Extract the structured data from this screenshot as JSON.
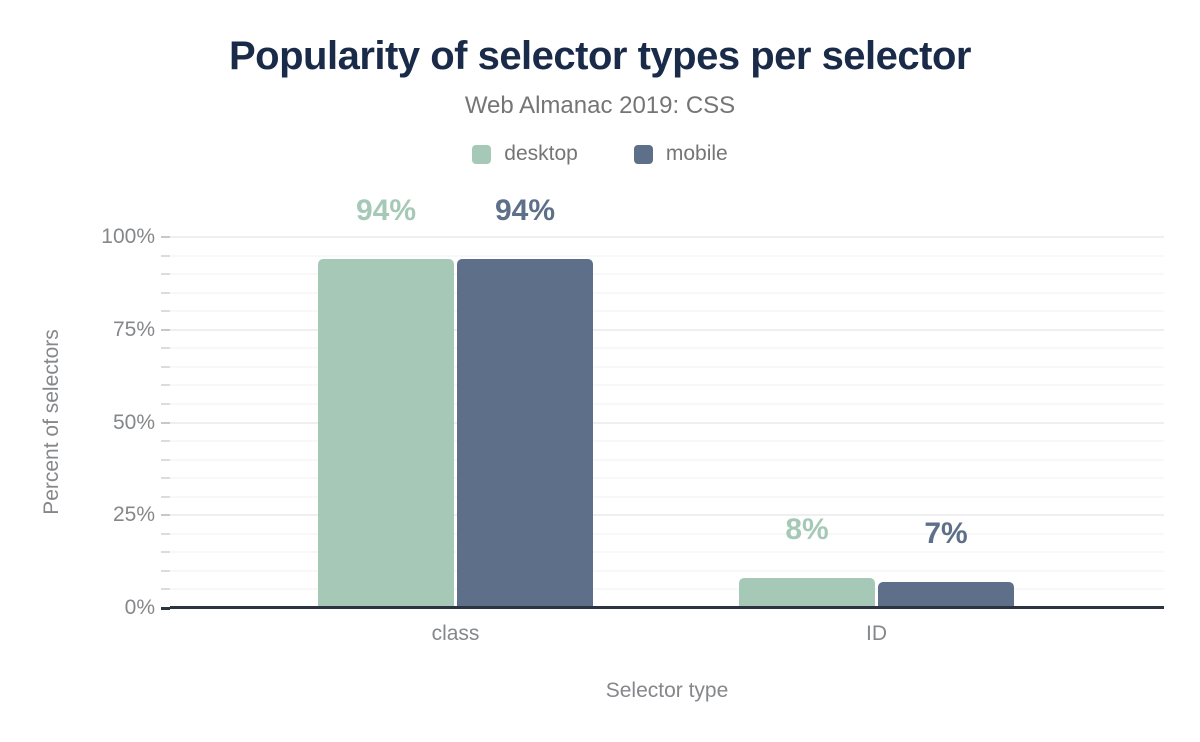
{
  "title": "Popularity of selector types per selector",
  "subtitle": "Web Almanac 2019: CSS",
  "chart_data": {
    "type": "bar",
    "categories": [
      "class",
      "ID"
    ],
    "series": [
      {
        "name": "desktop",
        "color": "#a6c9b7",
        "values": [
          94,
          8
        ],
        "labels": [
          "94%",
          "8%"
        ]
      },
      {
        "name": "mobile",
        "color": "#5e7089",
        "values": [
          94,
          7
        ],
        "labels": [
          "94%",
          "7%"
        ]
      }
    ],
    "title": "Popularity of selector types per selector",
    "subtitle": "Web Almanac 2019: CSS",
    "xlabel": "Selector type",
    "ylabel": "Percent of selectors",
    "ylim": [
      0,
      100
    ],
    "y_ticks": [
      0,
      25,
      50,
      75,
      100
    ],
    "y_tick_labels": [
      "0%",
      "25%",
      "50%",
      "75%",
      "100%"
    ],
    "minor_grid_step": 5,
    "grid": "on",
    "legend_position": "top"
  },
  "colors": {
    "title_text": "#1a2b49",
    "subtitle_text": "#757575",
    "axis_text": "#85878a",
    "desktop": "#a6c9b7",
    "mobile": "#5e7089",
    "baseline": "#2b3440",
    "grid_minor": "#f8f8f8",
    "grid_major": "#efefef"
  }
}
